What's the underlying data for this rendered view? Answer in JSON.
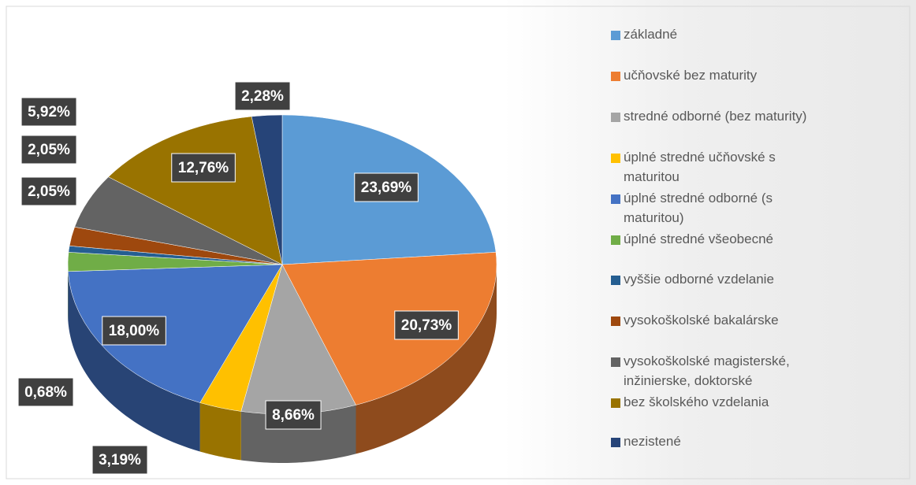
{
  "chart_data": {
    "type": "pie",
    "categories": [
      "základné",
      "učňovské bez maturity",
      "stredné odborné (bez maturity)",
      "úplné stredné učňovské s maturitou",
      "úplné stredné odborné (s maturitou)",
      "úplné stredné všeobecné",
      "vyššie odborné vzdelanie",
      "vysokoškolské bakalárske",
      "vysokoškolské magisterské, inžinierske, doktorské",
      "bez školského vzdelania",
      "nezistené"
    ],
    "values": [
      23.69,
      20.73,
      8.66,
      3.19,
      18.0,
      2.05,
      0.68,
      2.05,
      5.92,
      12.76,
      2.28
    ],
    "value_labels": [
      "23,69%",
      "20,73%",
      "8,66%",
      "3,19%",
      "18,00%",
      "2,05%",
      "0,68%",
      "2,05%",
      "5,92%",
      "12,76%",
      "2,28%"
    ],
    "colors": [
      "#5b9bd5",
      "#ed7d31",
      "#a5a5a5",
      "#ffc000",
      "#4472c4",
      "#70ad47",
      "#255e91",
      "#9e480e",
      "#636363",
      "#997300",
      "#264478"
    ],
    "legend": "right"
  }
}
